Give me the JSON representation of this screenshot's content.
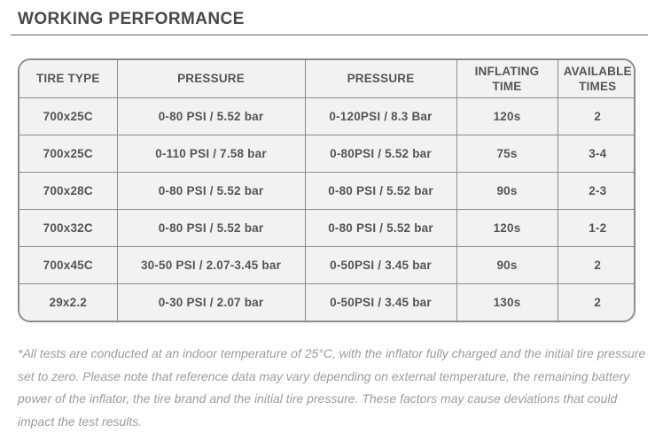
{
  "page": {
    "title": "WORKING PERFORMANCE"
  },
  "table": {
    "headers": [
      "TIRE TYPE",
      "PRESSURE",
      "PRESSURE",
      "INFLATING TIME",
      "AVAILABLE TIMES"
    ],
    "rows": [
      [
        "700x25C",
        "0-80 PSI / 5.52 bar",
        "0-120PSI / 8.3 Bar",
        "120s",
        "2"
      ],
      [
        "700x25C",
        "0-110 PSI / 7.58 bar",
        "0-80PSI / 5.52 bar",
        "75s",
        "3-4"
      ],
      [
        "700x28C",
        "0-80 PSI / 5.52 bar",
        "0-80 PSI / 5.52 bar",
        "90s",
        "2-3"
      ],
      [
        "700x32C",
        "0-80 PSI / 5.52 bar",
        "0-80 PSI / 5.52 bar",
        "120s",
        "1-2"
      ],
      [
        "700x45C",
        "30-50 PSI / 2.07-3.45 bar",
        "0-50PSI / 3.45 bar",
        "90s",
        "2"
      ],
      [
        "29x2.2",
        "0-30 PSI / 2.07 bar",
        "0-50PSI / 3.45 bar",
        "130s",
        "2"
      ]
    ]
  },
  "footnote": "*All tests are conducted at an indoor temperature of 25°C, with the inflator fully charged and the initial tire pressure set to zero. Please note that reference data may vary depending on external temperature, the remaining battery power of the inflator, the tire brand and the initial tire pressure. These factors may cause deviations that could impact the test results.",
  "colors": {
    "title": "#47484d",
    "table_border": "#8c8c8c",
    "cell_background": "#f2f2f2",
    "cell_text": "#54555a",
    "footnote_text": "#9d9d9d"
  }
}
